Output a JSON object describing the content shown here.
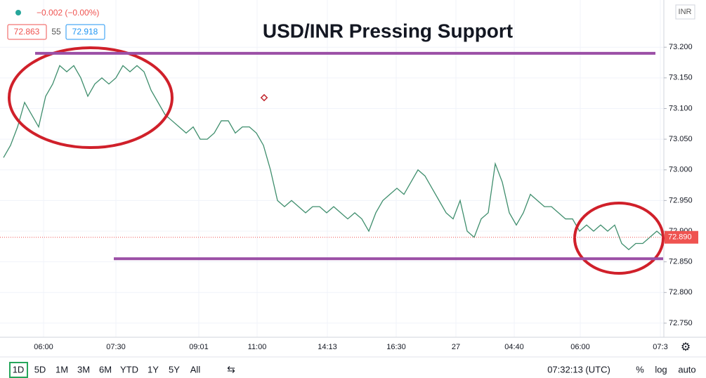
{
  "header": {
    "change": "−0.002 (−0.00%)",
    "bid": "72.863",
    "spread": "55",
    "ask": "72.918"
  },
  "currency": "INR",
  "chart_data": {
    "type": "line",
    "title": "USD/INR Pressing Support",
    "color": "#3f8e6d",
    "x": [
      0,
      1,
      2,
      3,
      4,
      5,
      6,
      7,
      8,
      9,
      10,
      11,
      12,
      13,
      14,
      15,
      16,
      17,
      18,
      19,
      20,
      21,
      22,
      23,
      24,
      25,
      26,
      27,
      28,
      29,
      30,
      31,
      32,
      33,
      34,
      35,
      36,
      37,
      38,
      39,
      40,
      41,
      42,
      43,
      44,
      45,
      46,
      47,
      48,
      49,
      50,
      51,
      52,
      53,
      54,
      55,
      56,
      57,
      58,
      59,
      60,
      61,
      62,
      63,
      64,
      65,
      66,
      67,
      68,
      69,
      70,
      71,
      72,
      73,
      74,
      75,
      76,
      77,
      78,
      79,
      80,
      81,
      82,
      83,
      84,
      85,
      86,
      87,
      88,
      89,
      90,
      91,
      92,
      93,
      94
    ],
    "values": [
      73.02,
      73.04,
      73.07,
      73.11,
      73.09,
      73.07,
      73.12,
      73.14,
      73.17,
      73.16,
      73.17,
      73.15,
      73.12,
      73.14,
      73.15,
      73.14,
      73.15,
      73.17,
      73.16,
      73.17,
      73.16,
      73.13,
      73.11,
      73.09,
      73.08,
      73.07,
      73.06,
      73.07,
      73.05,
      73.05,
      73.06,
      73.08,
      73.08,
      73.06,
      73.07,
      73.07,
      73.06,
      73.04,
      73.0,
      72.95,
      72.94,
      72.95,
      72.94,
      72.93,
      72.94,
      72.94,
      72.93,
      72.94,
      72.93,
      72.92,
      72.93,
      72.92,
      72.9,
      72.93,
      72.95,
      72.96,
      72.97,
      72.96,
      72.98,
      73.0,
      72.99,
      72.97,
      72.95,
      72.93,
      72.92,
      72.95,
      72.9,
      72.89,
      72.92,
      72.93,
      73.01,
      72.98,
      72.93,
      72.91,
      72.93,
      72.96,
      72.95,
      72.94,
      72.94,
      72.93,
      72.92,
      72.92,
      72.9,
      72.91,
      72.9,
      72.91,
      72.9,
      72.91,
      72.88,
      72.87,
      72.88,
      72.88,
      72.89,
      72.9,
      72.89
    ],
    "xlim": [
      0,
      94
    ],
    "xticks": [
      {
        "value": 5.7,
        "label": "06:00"
      },
      {
        "value": 16,
        "label": "07:30"
      },
      {
        "value": 27.8,
        "label": "09:01"
      },
      {
        "value": 36.1,
        "label": "11:00"
      },
      {
        "value": 46.1,
        "label": "14:13"
      },
      {
        "value": 55.9,
        "label": "16:30"
      },
      {
        "value": 64.4,
        "label": "27"
      },
      {
        "value": 72.7,
        "label": "04:40"
      },
      {
        "value": 82.1,
        "label": "06:00"
      },
      {
        "value": 93.5,
        "label": "07:3"
      }
    ],
    "ylim": [
      72.727,
      73.277
    ],
    "yticks": [
      {
        "value": 72.75,
        "label": "72.750"
      },
      {
        "value": 72.8,
        "label": "72.800"
      },
      {
        "value": 72.85,
        "label": "72.850"
      },
      {
        "value": 72.9,
        "label": "72.900"
      },
      {
        "value": 72.95,
        "label": "72.950"
      },
      {
        "value": 73.0,
        "label": "73.000"
      },
      {
        "value": 73.05,
        "label": "73.050"
      },
      {
        "value": 73.1,
        "label": "73.100"
      },
      {
        "value": 73.15,
        "label": "73.150"
      },
      {
        "value": 73.2,
        "label": "73.200"
      }
    ],
    "grid": true,
    "support_lines": {
      "levels": [
        73.19,
        72.855
      ],
      "color": "#9b4fa6"
    },
    "last_price": {
      "value": 72.89,
      "label": "72.890"
    }
  },
  "toolbar": {
    "ranges": [
      "1D",
      "5D",
      "1M",
      "3M",
      "6M",
      "YTD",
      "1Y",
      "5Y",
      "All"
    ],
    "time": "07:32:13 (UTC)",
    "options": [
      "%",
      "log",
      "auto"
    ]
  }
}
